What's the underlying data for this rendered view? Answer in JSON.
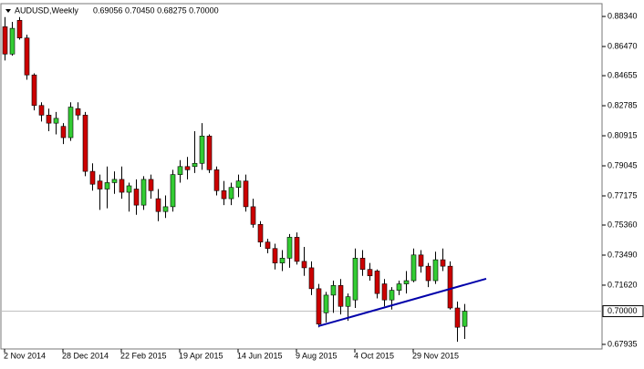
{
  "chart_data": {
    "type": "candlestick",
    "title": "AUDUSD,Weekly",
    "quote": "0.69056 0.70450 0.68275 0.70000",
    "categories": [
      "2 Nov 2014",
      null,
      null,
      null,
      null,
      null,
      null,
      null,
      "28 Dec 2014",
      null,
      null,
      null,
      null,
      null,
      null,
      null,
      "22 Feb 2015",
      null,
      null,
      null,
      null,
      null,
      null,
      null,
      "19 Apr 2015",
      null,
      null,
      null,
      null,
      null,
      null,
      null,
      "14 Jun 2015",
      null,
      null,
      null,
      null,
      null,
      null,
      null,
      "9 Aug 2015",
      null,
      null,
      null,
      null,
      null,
      null,
      null,
      "4 Oct 2015",
      null,
      null,
      null,
      null,
      null,
      null,
      null,
      "29 Nov 2015",
      null,
      null,
      null,
      null,
      null,
      null,
      null
    ],
    "open": [
      0.877,
      0.86,
      0.881,
      0.87,
      0.847,
      0.828,
      0.822,
      0.817,
      0.815,
      0.808,
      0.826,
      0.822,
      0.787,
      0.781,
      0.776,
      0.78,
      0.782,
      0.774,
      0.776,
      0.766,
      0.782,
      0.77,
      0.762,
      0.765,
      0.785,
      0.79,
      0.79,
      0.792,
      0.809,
      0.788,
      0.775,
      0.77,
      0.777,
      0.781,
      0.765,
      0.754,
      0.743,
      0.739,
      0.73,
      0.733,
      0.746,
      0.731,
      0.727,
      0.714,
      0.699,
      0.71,
      0.716,
      0.703,
      0.707,
      0.733,
      0.726,
      0.725,
      0.717,
      0.707,
      0.713,
      0.717,
      0.719,
      0.735,
      0.728,
      0.719,
      0.732,
      0.728,
      0.702,
      0.69056
    ],
    "high": [
      0.883,
      0.88,
      0.883,
      0.872,
      0.848,
      0.83,
      0.826,
      0.824,
      0.817,
      0.83,
      0.83,
      0.824,
      0.792,
      0.785,
      0.79,
      0.787,
      0.79,
      0.78,
      0.782,
      0.784,
      0.785,
      0.776,
      0.772,
      0.788,
      0.794,
      0.796,
      0.812,
      0.817,
      0.81,
      0.79,
      0.781,
      0.78,
      0.785,
      0.785,
      0.77,
      0.756,
      0.745,
      0.742,
      0.738,
      0.748,
      0.749,
      0.74,
      0.731,
      0.717,
      0.712,
      0.719,
      0.72,
      0.711,
      0.739,
      0.738,
      0.73,
      0.726,
      0.72,
      0.715,
      0.719,
      0.725,
      0.739,
      0.738,
      0.73,
      0.737,
      0.739,
      0.731,
      0.706,
      0.7045
    ],
    "low": [
      0.856,
      0.859,
      0.869,
      0.844,
      0.825,
      0.818,
      0.812,
      0.81,
      0.804,
      0.806,
      0.819,
      0.784,
      0.775,
      0.763,
      0.764,
      0.773,
      0.77,
      0.762,
      0.76,
      0.763,
      0.77,
      0.756,
      0.758,
      0.762,
      0.78,
      0.782,
      0.786,
      0.788,
      0.786,
      0.772,
      0.766,
      0.766,
      0.771,
      0.762,
      0.752,
      0.74,
      0.736,
      0.726,
      0.725,
      0.727,
      0.729,
      0.722,
      0.71,
      0.69,
      0.693,
      0.699,
      0.698,
      0.694,
      0.702,
      0.722,
      0.719,
      0.708,
      0.703,
      0.701,
      0.71,
      0.711,
      0.718,
      0.724,
      0.715,
      0.717,
      0.725,
      0.701,
      0.681,
      0.68275
    ],
    "close": [
      0.86,
      0.876,
      0.87,
      0.847,
      0.828,
      0.822,
      0.817,
      0.82,
      0.808,
      0.827,
      0.822,
      0.787,
      0.779,
      0.776,
      0.78,
      0.782,
      0.774,
      0.778,
      0.766,
      0.782,
      0.775,
      0.762,
      0.765,
      0.785,
      0.79,
      0.788,
      0.792,
      0.809,
      0.788,
      0.775,
      0.77,
      0.777,
      0.781,
      0.765,
      0.754,
      0.743,
      0.739,
      0.73,
      0.733,
      0.746,
      0.731,
      0.727,
      0.714,
      0.692,
      0.71,
      0.716,
      0.703,
      0.709,
      0.733,
      0.726,
      0.722,
      0.711,
      0.707,
      0.713,
      0.717,
      0.719,
      0.735,
      0.728,
      0.719,
      0.732,
      0.728,
      0.702,
      0.69,
      0.7
    ],
    "up_color": "#33cc33",
    "down_color": "#cc0000",
    "ylim": [
      0.6765,
      0.8908
    ],
    "yticks": [
      {
        "value": 0.8834,
        "label": "0.88340"
      },
      {
        "value": 0.8647,
        "label": "0.86470"
      },
      {
        "value": 0.84655,
        "label": "0.84655"
      },
      {
        "value": 0.82785,
        "label": "0.82785"
      },
      {
        "value": 0.80915,
        "label": "0.80915"
      },
      {
        "value": 0.79045,
        "label": "0.79045"
      },
      {
        "value": 0.77175,
        "label": "0.77175"
      },
      {
        "value": 0.7536,
        "label": "0.75360"
      },
      {
        "value": 0.7349,
        "label": "0.73490"
      },
      {
        "value": 0.7162,
        "label": "0.71620"
      },
      {
        "value": 0.67935,
        "label": "0.67935"
      }
    ],
    "price_line": {
      "value": 0.7,
      "label": "0.70000"
    },
    "trendline": {
      "color": "#0000aa",
      "x": [
        43,
        66
      ],
      "y": [
        0.6907,
        0.7202
      ]
    }
  }
}
